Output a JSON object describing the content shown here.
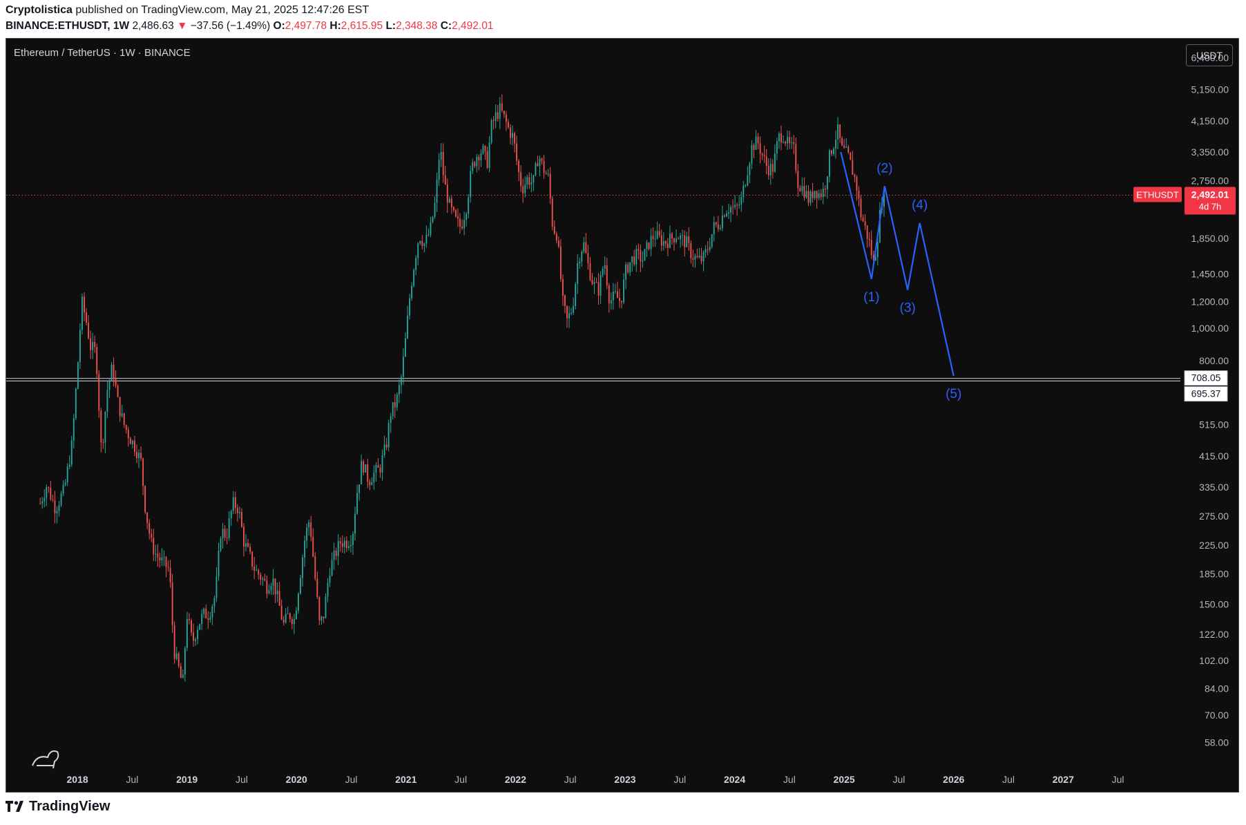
{
  "header": {
    "author": "Cryptolistica",
    "published": "published on TradingView.com, May 21, 2025 12:47:26 EST",
    "symbol": "BINANCE:ETHUSDT, 1W",
    "last": "2,486.63",
    "change": "−37.56 (−1.49%)",
    "o_label": "O:",
    "o": "2,497.78",
    "h_label": "H:",
    "h": "2,615.95",
    "l_label": "L:",
    "l": "2,348.38",
    "c_label": "C:",
    "c": "2,492.01"
  },
  "chart_title": "Ethereum / TetherUS · 1W · BINANCE",
  "currency_button": "USDT",
  "price_tag": {
    "symbol": "ETHUSDT",
    "price": "2,492.01",
    "countdown": "4d 7h"
  },
  "hline_labels": [
    "708.05",
    "695.37"
  ],
  "footer": {
    "brand": "TradingView"
  },
  "colors": {
    "up": "#26a69a",
    "down": "#ef5350",
    "wave": "#2962ff",
    "price_line": "#f23645"
  },
  "chart_data": {
    "type": "candlestick",
    "scale": "log",
    "ylim": [
      50,
      7300
    ],
    "y_ticks": [
      6400,
      5150,
      4150,
      3350,
      2750,
      1850,
      1450,
      1200,
      1000,
      800,
      515,
      415,
      335,
      275,
      225,
      185,
      150,
      122,
      102,
      84,
      70,
      58
    ],
    "y_tick_labels": [
      "6,400.00",
      "5,150.00",
      "4,150.00",
      "3,350.00",
      "2,750.00",
      "1,850.00",
      "1,450.00",
      "1,200.00",
      "1,000.00",
      "800.00",
      "515.00",
      "415.00",
      "335.00",
      "275.00",
      "225.00",
      "185.00",
      "150.00",
      "122.00",
      "102.00",
      "84.00",
      "70.00",
      "58.00"
    ],
    "x_ticks": [
      {
        "t": 2018.0,
        "label": "2018",
        "major": true
      },
      {
        "t": 2018.5,
        "label": "Jul",
        "major": false
      },
      {
        "t": 2019.0,
        "label": "2019",
        "major": true
      },
      {
        "t": 2019.5,
        "label": "Jul",
        "major": false
      },
      {
        "t": 2020.0,
        "label": "2020",
        "major": true
      },
      {
        "t": 2020.5,
        "label": "Jul",
        "major": false
      },
      {
        "t": 2021.0,
        "label": "2021",
        "major": true
      },
      {
        "t": 2021.5,
        "label": "Jul",
        "major": false
      },
      {
        "t": 2022.0,
        "label": "2022",
        "major": true
      },
      {
        "t": 2022.5,
        "label": "Jul",
        "major": false
      },
      {
        "t": 2023.0,
        "label": "2023",
        "major": true
      },
      {
        "t": 2023.5,
        "label": "Jul",
        "major": false
      },
      {
        "t": 2024.0,
        "label": "2024",
        "major": true
      },
      {
        "t": 2024.5,
        "label": "Jul",
        "major": false
      },
      {
        "t": 2025.0,
        "label": "2025",
        "major": true
      },
      {
        "t": 2025.5,
        "label": "Jul",
        "major": false
      },
      {
        "t": 2026.0,
        "label": "2026",
        "major": true
      },
      {
        "t": 2026.5,
        "label": "Jul",
        "major": false
      },
      {
        "t": 2027.0,
        "label": "2027",
        "major": true
      },
      {
        "t": 2027.5,
        "label": "Jul",
        "major": false
      }
    ],
    "xlim": [
      2017.35,
      2028.07
    ],
    "current_price": 2492.01,
    "support_band": [
      695.37,
      708.05
    ],
    "price_path": [
      [
        2017.66,
        300
      ],
      [
        2017.72,
        340
      ],
      [
        2017.8,
        290
      ],
      [
        2017.88,
        330
      ],
      [
        2017.95,
        450
      ],
      [
        2018.0,
        750
      ],
      [
        2018.04,
        1200
      ],
      [
        2018.08,
        1050
      ],
      [
        2018.12,
        880
      ],
      [
        2018.17,
        850
      ],
      [
        2018.22,
        420
      ],
      [
        2018.27,
        650
      ],
      [
        2018.32,
        770
      ],
      [
        2018.37,
        600
      ],
      [
        2018.42,
        520
      ],
      [
        2018.48,
        470
      ],
      [
        2018.53,
        440
      ],
      [
        2018.58,
        400
      ],
      [
        2018.62,
        290
      ],
      [
        2018.67,
        230
      ],
      [
        2018.72,
        210
      ],
      [
        2018.78,
        200
      ],
      [
        2018.84,
        190
      ],
      [
        2018.88,
        110
      ],
      [
        2018.93,
        95
      ],
      [
        2018.96,
        85
      ],
      [
        2019.0,
        140
      ],
      [
        2019.05,
        115
      ],
      [
        2019.1,
        130
      ],
      [
        2019.15,
        140
      ],
      [
        2019.2,
        140
      ],
      [
        2019.26,
        160
      ],
      [
        2019.31,
        250
      ],
      [
        2019.36,
        240
      ],
      [
        2019.42,
        300
      ],
      [
        2019.47,
        290
      ],
      [
        2019.52,
        230
      ],
      [
        2019.57,
        210
      ],
      [
        2019.62,
        190
      ],
      [
        2019.68,
        180
      ],
      [
        2019.73,
        170
      ],
      [
        2019.78,
        180
      ],
      [
        2019.84,
        150
      ],
      [
        2019.88,
        130
      ],
      [
        2019.93,
        140
      ],
      [
        2019.98,
        135
      ],
      [
        2020.03,
        180
      ],
      [
        2020.08,
        240
      ],
      [
        2020.12,
        270
      ],
      [
        2020.17,
        180
      ],
      [
        2020.21,
        130
      ],
      [
        2020.25,
        140
      ],
      [
        2020.3,
        190
      ],
      [
        2020.35,
        210
      ],
      [
        2020.4,
        230
      ],
      [
        2020.46,
        230
      ],
      [
        2020.51,
        240
      ],
      [
        2020.55,
        320
      ],
      [
        2020.6,
        400
      ],
      [
        2020.66,
        350
      ],
      [
        2020.71,
        370
      ],
      [
        2020.76,
        380
      ],
      [
        2020.82,
        450
      ],
      [
        2020.86,
        560
      ],
      [
        2020.91,
        600
      ],
      [
        2020.96,
        720
      ],
      [
        2021.0,
        950
      ],
      [
        2021.04,
        1300
      ],
      [
        2021.08,
        1600
      ],
      [
        2021.12,
        1900
      ],
      [
        2021.17,
        1780
      ],
      [
        2021.22,
        1950
      ],
      [
        2021.27,
        2400
      ],
      [
        2021.31,
        3500
      ],
      [
        2021.35,
        2700
      ],
      [
        2021.4,
        2300
      ],
      [
        2021.45,
        2100
      ],
      [
        2021.5,
        2000
      ],
      [
        2021.55,
        2300
      ],
      [
        2021.6,
        3000
      ],
      [
        2021.65,
        3300
      ],
      [
        2021.7,
        3400
      ],
      [
        2021.74,
        3100
      ],
      [
        2021.78,
        4000
      ],
      [
        2021.82,
        4300
      ],
      [
        2021.86,
        4500
      ],
      [
        2021.9,
        4200
      ],
      [
        2021.94,
        3900
      ],
      [
        2021.98,
        3700
      ],
      [
        2022.02,
        3000
      ],
      [
        2022.06,
        2600
      ],
      [
        2022.11,
        2800
      ],
      [
        2022.16,
        2700
      ],
      [
        2022.21,
        3300
      ],
      [
        2022.25,
        3000
      ],
      [
        2022.3,
        2800
      ],
      [
        2022.34,
        2000
      ],
      [
        2022.38,
        1900
      ],
      [
        2022.43,
        1200
      ],
      [
        2022.47,
        1050
      ],
      [
        2022.52,
        1150
      ],
      [
        2022.57,
        1600
      ],
      [
        2022.62,
        1800
      ],
      [
        2022.66,
        1550
      ],
      [
        2022.71,
        1350
      ],
      [
        2022.76,
        1300
      ],
      [
        2022.81,
        1600
      ],
      [
        2022.86,
        1200
      ],
      [
        2022.91,
        1250
      ],
      [
        2022.96,
        1200
      ],
      [
        2023.01,
        1500
      ],
      [
        2023.06,
        1600
      ],
      [
        2023.11,
        1650
      ],
      [
        2023.16,
        1600
      ],
      [
        2023.22,
        1800
      ],
      [
        2023.27,
        1900
      ],
      [
        2023.31,
        1850
      ],
      [
        2023.36,
        1800
      ],
      [
        2023.42,
        1850
      ],
      [
        2023.47,
        1900
      ],
      [
        2023.51,
        1850
      ],
      [
        2023.56,
        1800
      ],
      [
        2023.61,
        1650
      ],
      [
        2023.66,
        1600
      ],
      [
        2023.71,
        1600
      ],
      [
        2023.76,
        1750
      ],
      [
        2023.81,
        2000
      ],
      [
        2023.86,
        2050
      ],
      [
        2023.91,
        2250
      ],
      [
        2023.96,
        2300
      ],
      [
        2024.01,
        2250
      ],
      [
        2024.06,
        2400
      ],
      [
        2024.11,
        2900
      ],
      [
        2024.16,
        3500
      ],
      [
        2024.21,
        3600
      ],
      [
        2024.25,
        3300
      ],
      [
        2024.3,
        3000
      ],
      [
        2024.35,
        3000
      ],
      [
        2024.4,
        3700
      ],
      [
        2024.44,
        3800
      ],
      [
        2024.49,
        3500
      ],
      [
        2024.54,
        3400
      ],
      [
        2024.58,
        2700
      ],
      [
        2024.63,
        2600
      ],
      [
        2024.68,
        2400
      ],
      [
        2024.73,
        2600
      ],
      [
        2024.78,
        2500
      ],
      [
        2024.82,
        2600
      ],
      [
        2024.87,
        3300
      ],
      [
        2024.91,
        3600
      ],
      [
        2024.94,
        3900
      ],
      [
        2024.98,
        3400
      ],
      [
        2025.03,
        3300
      ],
      [
        2025.07,
        3000
      ],
      [
        2025.11,
        2700
      ],
      [
        2025.15,
        2200
      ],
      [
        2025.19,
        2000
      ],
      [
        2025.23,
        1800
      ],
      [
        2025.27,
        1550
      ],
      [
        2025.3,
        1800
      ],
      [
        2025.34,
        2400
      ],
      [
        2025.37,
        2492
      ]
    ],
    "wave_path": [
      [
        2024.97,
        3350
      ],
      [
        2025.25,
        1400
      ],
      [
        2025.37,
        2650
      ],
      [
        2025.58,
        1300
      ],
      [
        2025.69,
        2060
      ],
      [
        2026.0,
        720
      ]
    ],
    "wave_labels": [
      {
        "label": "(1)",
        "t": 2025.25,
        "price": 1400,
        "pos": "below"
      },
      {
        "label": "(2)",
        "t": 2025.37,
        "price": 2650,
        "pos": "above"
      },
      {
        "label": "(3)",
        "t": 2025.58,
        "price": 1300,
        "pos": "below"
      },
      {
        "label": "(4)",
        "t": 2025.69,
        "price": 2060,
        "pos": "above"
      },
      {
        "label": "(5)",
        "t": 2026.0,
        "price": 720,
        "pos": "below"
      }
    ]
  }
}
